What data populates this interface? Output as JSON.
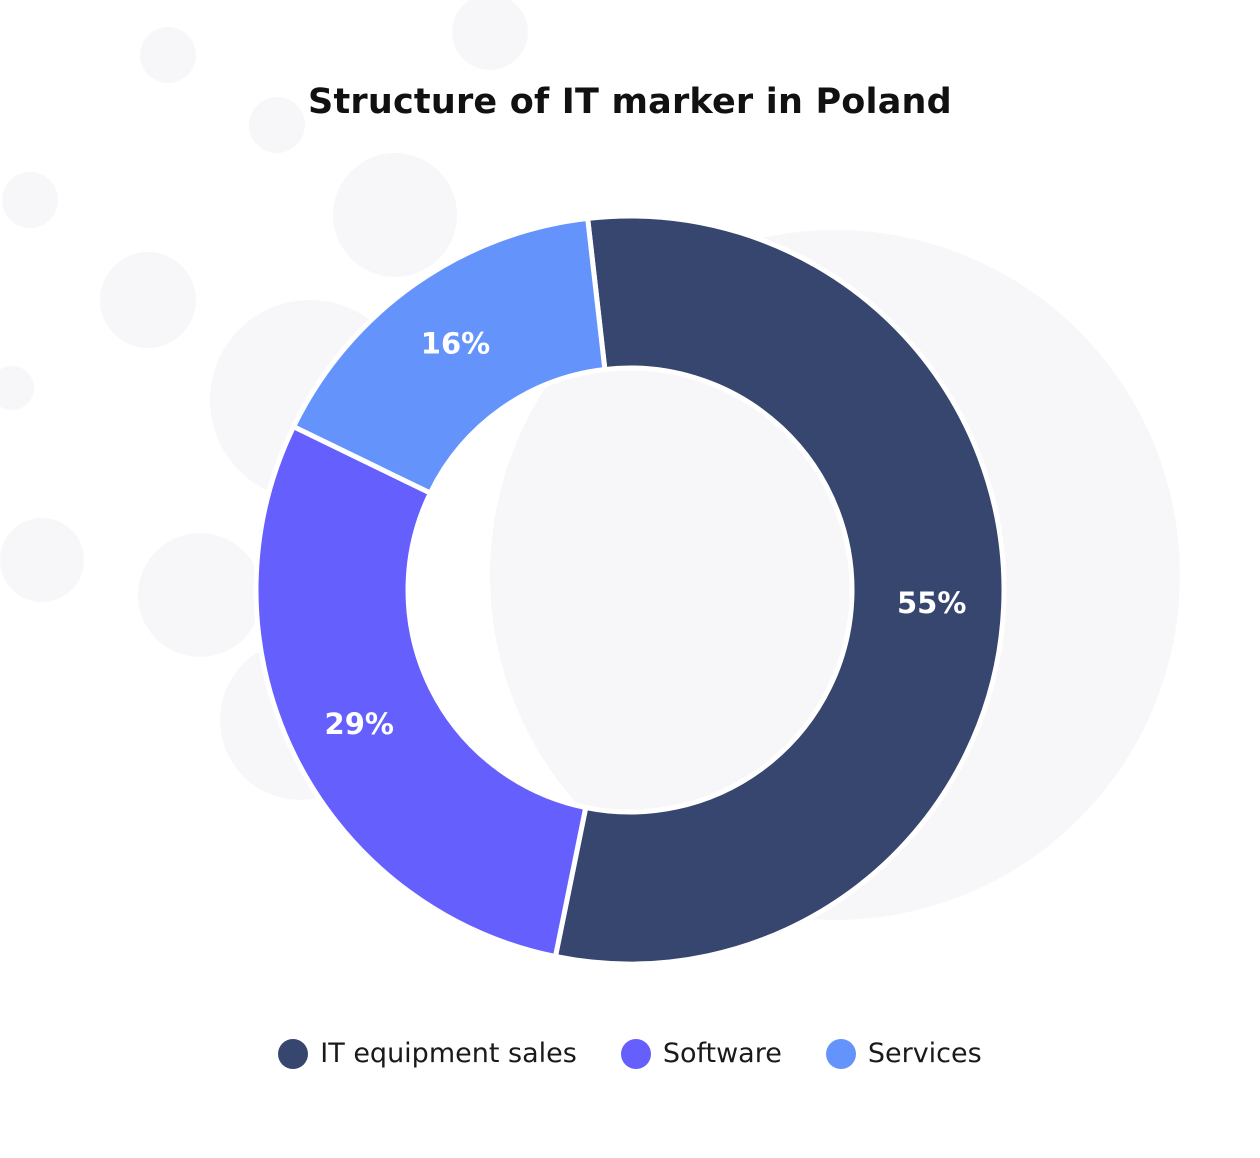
{
  "chart_data": {
    "type": "pie",
    "subtype": "donut",
    "title": "Structure of IT marker in Poland",
    "categories": [
      "IT equipment sales",
      "Software",
      "Services"
    ],
    "values": [
      55,
      29,
      16
    ],
    "labels": [
      "55%",
      "29%",
      "16%"
    ],
    "colors": [
      "#37466f",
      "#645ffd",
      "#6493fc"
    ],
    "legend_position": "bottom",
    "unit": "%"
  }
}
